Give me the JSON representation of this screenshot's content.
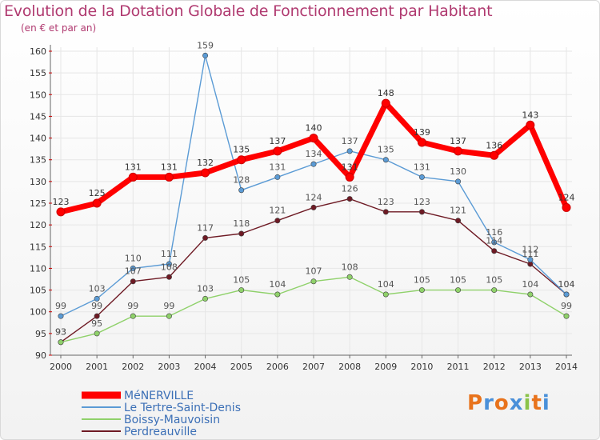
{
  "chart_data": {
    "type": "line",
    "title": "Evolution de la Dotation Globale de Fonctionnement par Habitant",
    "subtitle": "(en € et par an)",
    "xlabel": "",
    "ylabel": "",
    "categories": [
      "2000",
      "2001",
      "2002",
      "2003",
      "2004",
      "2005",
      "2006",
      "2007",
      "2008",
      "2009",
      "2010",
      "2011",
      "2012",
      "2013",
      "2014"
    ],
    "ylim": [
      90,
      160
    ],
    "yticks": [
      90,
      95,
      100,
      105,
      110,
      115,
      120,
      125,
      130,
      135,
      140,
      145,
      150,
      155,
      160
    ],
    "legend_position": "bottom-left",
    "series": [
      {
        "name": "Perdreauville",
        "color": "#6e1a24",
        "values": [
          93,
          99,
          107,
          108,
          117,
          118,
          121,
          124,
          126,
          123,
          123,
          121,
          114,
          111,
          104
        ]
      },
      {
        "name": "Boissy-Mauvoisin",
        "color": "#8fd16a",
        "values": [
          93,
          95,
          99,
          99,
          103,
          105,
          104,
          107,
          108,
          104,
          105,
          105,
          105,
          104,
          99
        ]
      },
      {
        "name": "Le Tertre-Saint-Denis",
        "color": "#5b9bd5",
        "values": [
          99,
          103,
          110,
          111,
          159,
          128,
          131,
          134,
          137,
          135,
          131,
          130,
          116,
          112,
          104
        ]
      },
      {
        "name": "MéNERVILLE",
        "color": "#ff0000",
        "values": [
          123,
          125,
          131,
          131,
          132,
          135,
          137,
          140,
          131,
          148,
          139,
          137,
          136,
          143,
          124
        ]
      }
    ]
  },
  "legend": {
    "items": [
      {
        "label": "MéNERVILLE",
        "color": "#ff0000"
      },
      {
        "label": "Le Tertre-Saint-Denis",
        "color": "#5b9bd5"
      },
      {
        "label": "Boissy-Mauvoisin",
        "color": "#8fd16a"
      },
      {
        "label": "Perdreauville",
        "color": "#6e1a24"
      }
    ]
  },
  "logo": {
    "text": "Proxiti"
  }
}
